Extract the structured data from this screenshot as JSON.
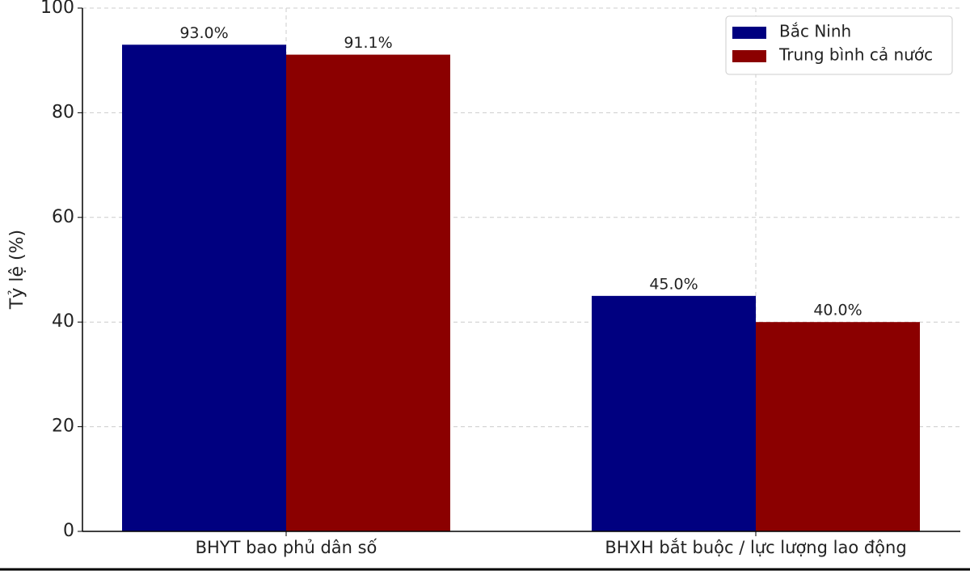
{
  "chart_data": {
    "type": "bar",
    "ylabel": "Tỷ lệ (%)",
    "categories": [
      "BHYT bao phủ dân số",
      "BHXH bắt buộc / lực lượng lao động"
    ],
    "series": [
      {
        "name": "Bắc Ninh",
        "color": "#000080",
        "values": [
          93.0,
          45.0
        ],
        "value_labels": [
          "93.0%",
          "45.0%"
        ]
      },
      {
        "name": "Trung bình cả nước",
        "color": "#8b0000",
        "values": [
          91.1,
          40.0
        ],
        "value_labels": [
          "91.1%",
          "40.0%"
        ]
      }
    ],
    "ylim": [
      0,
      100
    ],
    "yticks": [
      0,
      20,
      40,
      60,
      80,
      100
    ],
    "grid": true,
    "legend": "upper right"
  }
}
